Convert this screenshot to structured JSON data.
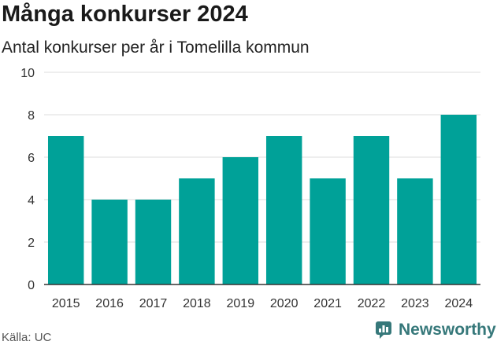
{
  "title": "Många konkurser 2024",
  "subtitle": "Antal konkurser per år i Tomelilla kommun",
  "source": "Källa: UC",
  "brand": {
    "name": "Newsworthy",
    "icon": "newsworthy-logo-icon"
  },
  "colors": {
    "bar": "#00a198",
    "grid": "#dddddd",
    "axis": "#333333",
    "brand": "#36787a"
  },
  "chart_data": {
    "type": "bar",
    "title": "Många konkurser 2024",
    "subtitle": "Antal konkurser per år i Tomelilla kommun",
    "xlabel": "",
    "ylabel": "",
    "categories": [
      "2015",
      "2016",
      "2017",
      "2018",
      "2019",
      "2020",
      "2021",
      "2022",
      "2023",
      "2024"
    ],
    "values": [
      7,
      4,
      4,
      5,
      6,
      7,
      5,
      7,
      5,
      8
    ],
    "ylim": [
      0,
      10
    ],
    "yticks": [
      0,
      2,
      4,
      6,
      8,
      10
    ],
    "grid": true,
    "legend": "none"
  }
}
